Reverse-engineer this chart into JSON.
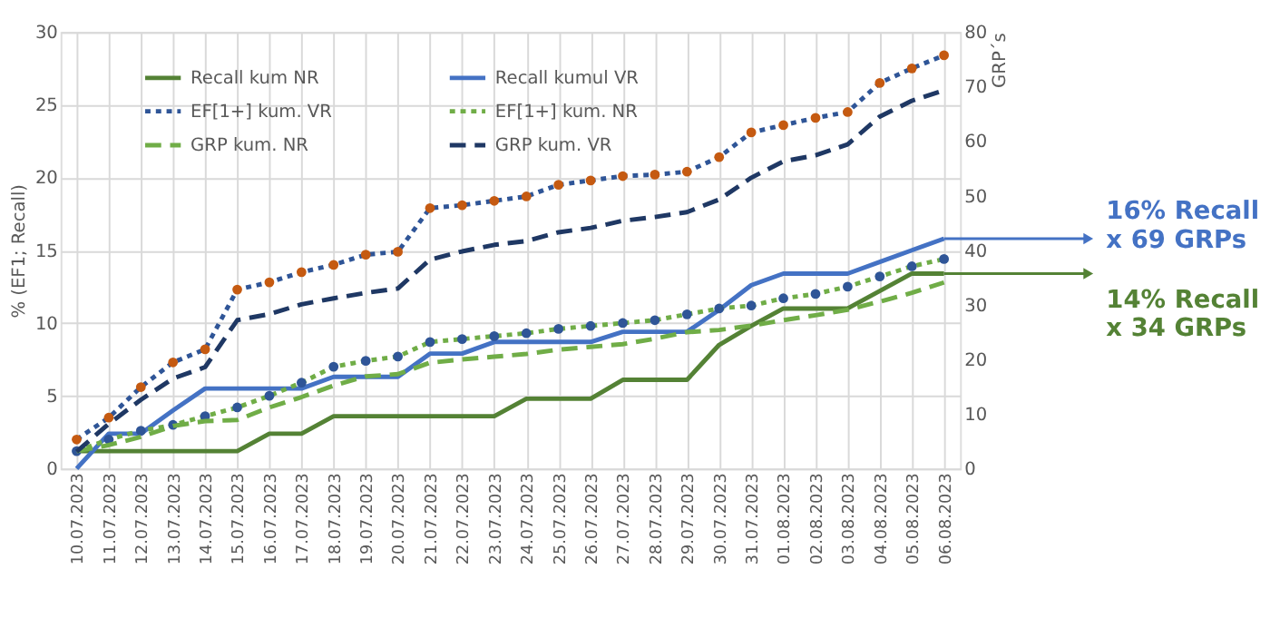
{
  "chart_data": {
    "type": "line",
    "categories": [
      "10.07.2023",
      "11.07.2023",
      "12.07.2023",
      "13.07.2023",
      "14.07.2023",
      "15.07.2023",
      "16.07.2023",
      "17.07.2023",
      "18.07.2023",
      "19.07.2023",
      "20.07.2023",
      "21.07.2023",
      "22.07.2023",
      "23.07.2023",
      "24.07.2023",
      "25.07.2023",
      "26.07.2023",
      "27.07.2023",
      "28.07.2023",
      "29.07.2023",
      "30.07.2023",
      "31.07.2023",
      "01.08.2023",
      "02.08.2023",
      "03.08.2023",
      "04.08.2023",
      "05.08.2023",
      "06.08.2023"
    ],
    "ylabel": "% (EF1; Recall)",
    "y2label": "GRP´s",
    "ylim": [
      0,
      30
    ],
    "yticks": [
      0,
      5,
      10,
      15,
      20,
      25,
      30
    ],
    "y2lim": [
      0,
      80
    ],
    "y2ticks": [
      0,
      10,
      20,
      30,
      40,
      50,
      60,
      70,
      80
    ],
    "grid": true,
    "legend": "top left",
    "series": [
      {
        "name": "Recall kum NR",
        "color": "#548235",
        "line_style": "solid",
        "values": [
          1.2,
          1.2,
          1.2,
          1.2,
          1.2,
          1.2,
          2.4,
          2.4,
          3.6,
          3.6,
          3.6,
          3.6,
          3.6,
          3.6,
          4.8,
          4.8,
          4.8,
          6.1,
          6.1,
          6.1,
          8.5,
          9.8,
          11.0,
          11.0,
          11.0,
          12.2,
          13.4,
          13.4
        ]
      },
      {
        "name": "Recall kumul VR",
        "color": "#4472c4",
        "line_style": "solid",
        "values": [
          0,
          2.4,
          2.4,
          4.0,
          5.5,
          5.5,
          5.5,
          5.5,
          6.3,
          6.3,
          6.3,
          7.9,
          7.9,
          8.7,
          8.7,
          8.7,
          8.7,
          9.4,
          9.4,
          9.4,
          10.9,
          12.6,
          13.4,
          13.4,
          13.4,
          14.2,
          15.0,
          15.8
        ]
      },
      {
        "name": "EF[1+] kum. VR",
        "color": "#2f5597",
        "line_style": "dotted",
        "marker": "circle",
        "colors": [
          "#c55a11",
          "#c55a11",
          "#c55a11",
          "#c55a11",
          "#c55a11",
          "#c55a11",
          "#c55a11",
          "#c55a11",
          "#c55a11",
          "#c55a11",
          "#c55a11",
          "#c55a11",
          "#c55a11",
          "#c55a11",
          "#c55a11",
          "#c55a11",
          "#c55a11",
          "#c55a11",
          "#c55a11",
          "#c55a11",
          "#c55a11",
          "#c55a11",
          "#c55a11",
          "#c55a11",
          "#c55a11",
          "#c55a11",
          "#c55a11",
          "#c55a11"
        ],
        "values": [
          2.0,
          3.5,
          5.6,
          7.3,
          8.2,
          12.3,
          12.8,
          13.5,
          14.0,
          14.7,
          14.9,
          17.9,
          18.1,
          18.4,
          18.7,
          19.5,
          19.8,
          20.1,
          20.2,
          20.4,
          21.4,
          23.1,
          23.6,
          24.1,
          24.5,
          26.5,
          27.5,
          28.4
        ]
      },
      {
        "name": "EF[1+] kum. NR",
        "color": "#70ad47",
        "line_style": "dotted",
        "marker": "circle",
        "colors": [
          "#2f5597",
          "#2f5597",
          "#2f5597",
          "#2f5597",
          "#2f5597",
          "#2f5597",
          "#2f5597",
          "#2f5597",
          "#2f5597",
          "#2f5597",
          "#2f5597",
          "#2f5597",
          "#2f5597",
          "#2f5597",
          "#2f5597",
          "#2f5597",
          "#2f5597",
          "#2f5597",
          "#2f5597",
          "#2f5597",
          "#2f5597",
          "#2f5597",
          "#2f5597",
          "#2f5597",
          "#2f5597",
          "#2f5597",
          "#2f5597",
          "#2f5597"
        ],
        "values": [
          1.2,
          2.0,
          2.6,
          3.0,
          3.6,
          4.2,
          5.0,
          5.9,
          7.0,
          7.4,
          7.7,
          8.7,
          8.9,
          9.1,
          9.3,
          9.6,
          9.8,
          10.0,
          10.2,
          10.6,
          11.0,
          11.2,
          11.7,
          12.0,
          12.5,
          13.2,
          13.9,
          14.4
        ]
      },
      {
        "name": "GRP  kum. NR",
        "color": "#70ad47",
        "line_style": "dashed",
        "axis": "y2",
        "values": [
          3.2,
          4.3,
          5.8,
          7.8,
          8.7,
          8.9,
          11.2,
          13.1,
          15.2,
          16.9,
          17.3,
          19.4,
          20.0,
          20.5,
          21.0,
          21.8,
          22.3,
          22.8,
          23.8,
          25.0,
          25.4,
          26.2,
          27.2,
          28.1,
          29.1,
          30.6,
          32.2,
          34.1
        ]
      },
      {
        "name": "GRP kum. VR",
        "color": "#1f3864",
        "line_style": "dashed",
        "axis": "y2",
        "values": [
          3.1,
          8.2,
          12.6,
          16.5,
          18.6,
          27.2,
          28.3,
          30.1,
          31.2,
          32.2,
          33.0,
          38.3,
          39.8,
          41.0,
          41.7,
          43.3,
          44.1,
          45.4,
          46.1,
          47.0,
          49.3,
          53.3,
          56.3,
          57.4,
          59.4,
          64.5,
          67.4,
          69.3
        ]
      }
    ],
    "annotations": [
      {
        "text": "16% Recall\nx 69 GRPs",
        "x": "06.08.2023",
        "y": 15.8
      },
      {
        "text": "14% Recall\nx 34 GRPs",
        "x": "06.08.2023",
        "y": 13.4
      }
    ]
  }
}
